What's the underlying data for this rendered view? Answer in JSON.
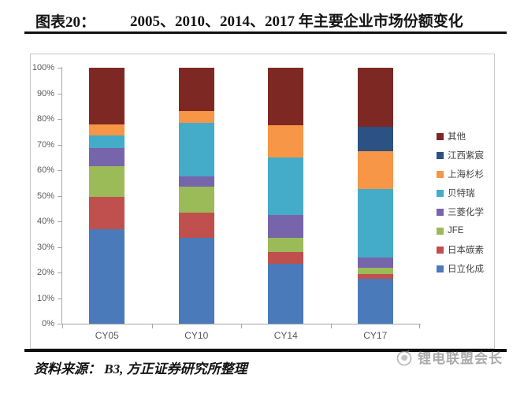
{
  "header": {
    "label": "图表20：",
    "title": "2005、2010、2014、2017 年主要企业市场份额变化"
  },
  "chart_data": {
    "type": "bar",
    "stacked": true,
    "normalized": "100%",
    "categories": [
      "CY05",
      "CY10",
      "CY14",
      "CY17"
    ],
    "series": [
      {
        "name": "日立化成",
        "color": "#4a7aba",
        "values": [
          37.0,
          33.5,
          23.5,
          17.5
        ]
      },
      {
        "name": "日本碳素",
        "color": "#c0504d",
        "values": [
          12.5,
          10.0,
          4.5,
          2.0
        ]
      },
      {
        "name": "JFE",
        "color": "#9bbb59",
        "values": [
          12.0,
          10.0,
          5.5,
          2.5
        ]
      },
      {
        "name": "三菱化学",
        "color": "#7765ab",
        "values": [
          7.0,
          4.0,
          9.0,
          4.0
        ]
      },
      {
        "name": "贝特瑞",
        "color": "#44abc8",
        "values": [
          5.0,
          21.0,
          22.5,
          26.5
        ]
      },
      {
        "name": "上海杉杉",
        "color": "#f79646",
        "values": [
          4.5,
          4.5,
          12.5,
          15.0
        ]
      },
      {
        "name": "江西紫宸",
        "color": "#2c5183",
        "values": [
          0.0,
          0.0,
          0.0,
          9.5
        ]
      },
      {
        "name": "其他",
        "color": "#7e2823",
        "values": [
          22.0,
          17.0,
          22.5,
          23.0
        ]
      }
    ],
    "ylim": [
      0,
      100
    ],
    "ytick_labels": [
      "0%",
      "10%",
      "20%",
      "30%",
      "40%",
      "50%",
      "60%",
      "70%",
      "80%",
      "90%",
      "100%"
    ],
    "grid": false,
    "legend_position": "right",
    "legend_order": "reversed (其他 at top, 日立化成 at bottom)",
    "axis_color": "#a6a6a6",
    "tick_label_color": "#595959"
  },
  "footer": {
    "source_text": "资料来源：  B3, 方正证券研究所整理",
    "watermark_text": "锂电联盟会长"
  }
}
